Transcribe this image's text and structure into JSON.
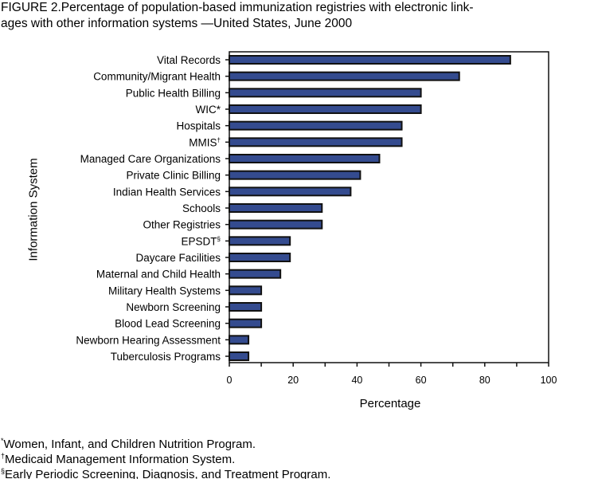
{
  "chart_data": {
    "type": "bar",
    "orientation": "horizontal",
    "title_lines": [
      "FIGURE 2.Percentage of population-based immunization registries with electronic link-",
      "ages with other information systems —United States, June 2000"
    ],
    "xlabel": "Percentage",
    "ylabel": "Information System",
    "xlim": [
      0,
      100
    ],
    "xticks": [
      0,
      20,
      40,
      60,
      80,
      100
    ],
    "grid": false,
    "bar_color": "#344b8f",
    "categories": [
      {
        "name": "Vital Records",
        "mark": ""
      },
      {
        "name": "Community/Migrant Health",
        "mark": ""
      },
      {
        "name": "Public Health Billing",
        "mark": ""
      },
      {
        "name": "WIC",
        "mark": "*"
      },
      {
        "name": "Hospitals",
        "mark": ""
      },
      {
        "name": "MMIS",
        "mark": "†"
      },
      {
        "name": "Managed Care Organizations",
        "mark": ""
      },
      {
        "name": "Private Clinic Billing",
        "mark": ""
      },
      {
        "name": "Indian Health Services",
        "mark": ""
      },
      {
        "name": "Schools",
        "mark": ""
      },
      {
        "name": "Other Registries",
        "mark": ""
      },
      {
        "name": "EPSDT",
        "mark": "§"
      },
      {
        "name": "Daycare Facilities",
        "mark": ""
      },
      {
        "name": "Maternal and Child Health",
        "mark": ""
      },
      {
        "name": "Military Health Systems",
        "mark": ""
      },
      {
        "name": "Newborn Screening",
        "mark": ""
      },
      {
        "name": "Blood Lead Screening",
        "mark": ""
      },
      {
        "name": "Newborn Hearing Assessment",
        "mark": ""
      },
      {
        "name": "Tuberculosis Programs",
        "mark": ""
      }
    ],
    "values": [
      88,
      72,
      60,
      60,
      54,
      54,
      47,
      41,
      38,
      29,
      29,
      19,
      19,
      16,
      10,
      10,
      10,
      6,
      6
    ]
  },
  "footnotes": [
    {
      "mark": "*",
      "text": "Women, Infant, and Children Nutrition Program."
    },
    {
      "mark": "†",
      "text": "Medicaid Management Information System."
    },
    {
      "mark": "§",
      "text": "Early Periodic Screening, Diagnosis, and Treatment Program."
    }
  ]
}
